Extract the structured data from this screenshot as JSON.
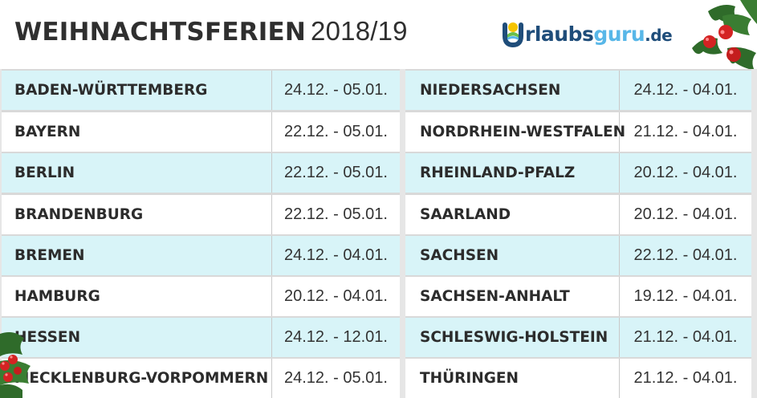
{
  "header": {
    "title_bold": "WEIHNACHTSFERIEN",
    "title_year": "2018/19"
  },
  "logo": {
    "part1": "rlaubs",
    "part2": "guru",
    "part3": ".de",
    "initial": "U",
    "colors": {
      "dark": "#1f4d7a",
      "light": "#58b7e8",
      "yellow": "#f5c400",
      "green": "#6abf4b"
    }
  },
  "decoration": {
    "icon": "holly-berries-icon",
    "berry_color": "#d42323",
    "leaf_color": "#2f6b2a"
  },
  "table": {
    "row_alt_color": "#d8f4f8",
    "left": [
      {
        "state": "BADEN-WÜRTTEMBERG",
        "dates": "24.12. - 05.01."
      },
      {
        "state": "BAYERN",
        "dates": "22.12. - 05.01."
      },
      {
        "state": "BERLIN",
        "dates": "22.12. - 05.01."
      },
      {
        "state": "BRANDENBURG",
        "dates": "22.12. - 05.01."
      },
      {
        "state": "BREMEN",
        "dates": "24.12. - 04.01."
      },
      {
        "state": "HAMBURG",
        "dates": "20.12. - 04.01."
      },
      {
        "state": "HESSEN",
        "dates": "24.12. - 12.01."
      },
      {
        "state": "MECKLENBURG-VORPOMMERN",
        "dates": "24.12. - 05.01."
      }
    ],
    "right": [
      {
        "state": "NIEDERSACHSEN",
        "dates": "24.12. - 04.01."
      },
      {
        "state": "NORDRHEIN-WESTFALEN",
        "dates": "21.12. - 04.01."
      },
      {
        "state": "RHEINLAND-PFALZ",
        "dates": "20.12. - 04.01."
      },
      {
        "state": "SAARLAND",
        "dates": "20.12. - 04.01."
      },
      {
        "state": "SACHSEN",
        "dates": "22.12. - 04.01."
      },
      {
        "state": "SACHSEN-ANHALT",
        "dates": "19.12. - 04.01."
      },
      {
        "state": "SCHLESWIG-HOLSTEIN",
        "dates": "21.12. - 04.01."
      },
      {
        "state": "THÜRINGEN",
        "dates": "21.12. - 04.01."
      }
    ]
  }
}
